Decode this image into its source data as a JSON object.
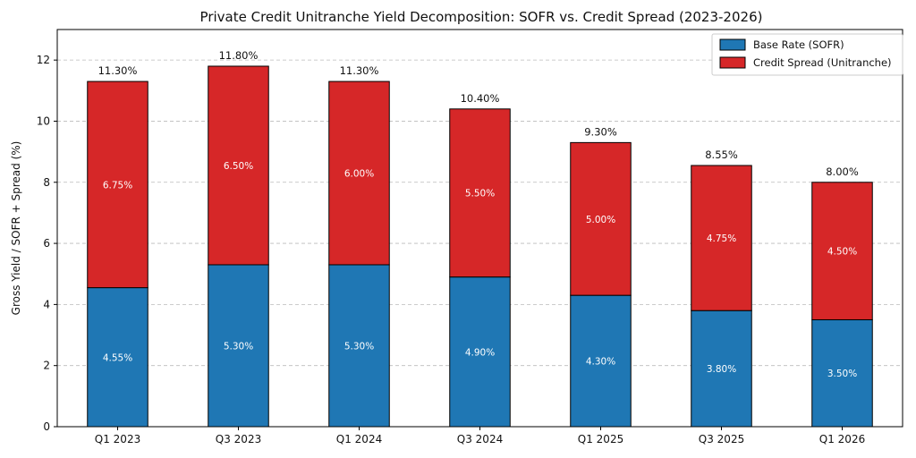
{
  "chart_data": {
    "type": "bar",
    "stacked": true,
    "title": "Private Credit Unitranche Yield Decomposition: SOFR vs. Credit Spread (2023-2026)",
    "xlabel": "",
    "ylabel": "Gross Yield / SOFR + Spread (%)",
    "ylim": [
      0,
      13
    ],
    "yticks": [
      0,
      2,
      4,
      6,
      8,
      10,
      12
    ],
    "grid": true,
    "legend_position": "top-right",
    "categories": [
      "Q1 2023",
      "Q3 2023",
      "Q1 2024",
      "Q3 2024",
      "Q1 2025",
      "Q3 2025",
      "Q1 2026"
    ],
    "series": [
      {
        "name": "Base Rate (SOFR)",
        "color": "#1f77b4",
        "values": [
          4.55,
          5.3,
          5.3,
          4.9,
          4.3,
          3.8,
          3.5
        ],
        "labels": [
          "4.55%",
          "5.30%",
          "5.30%",
          "4.90%",
          "4.30%",
          "3.80%",
          "3.50%"
        ]
      },
      {
        "name": "Credit Spread (Unitranche)",
        "color": "#d62728",
        "values": [
          6.75,
          6.5,
          6.0,
          5.5,
          5.0,
          4.75,
          4.5
        ],
        "labels": [
          "6.75%",
          "6.50%",
          "6.00%",
          "5.50%",
          "5.00%",
          "4.75%",
          "4.50%"
        ]
      }
    ],
    "totals": [
      11.3,
      11.8,
      11.3,
      10.4,
      9.3,
      8.55,
      8.0
    ],
    "total_labels": [
      "11.30%",
      "11.80%",
      "11.30%",
      "10.40%",
      "9.30%",
      "8.55%",
      "8.00%"
    ]
  }
}
